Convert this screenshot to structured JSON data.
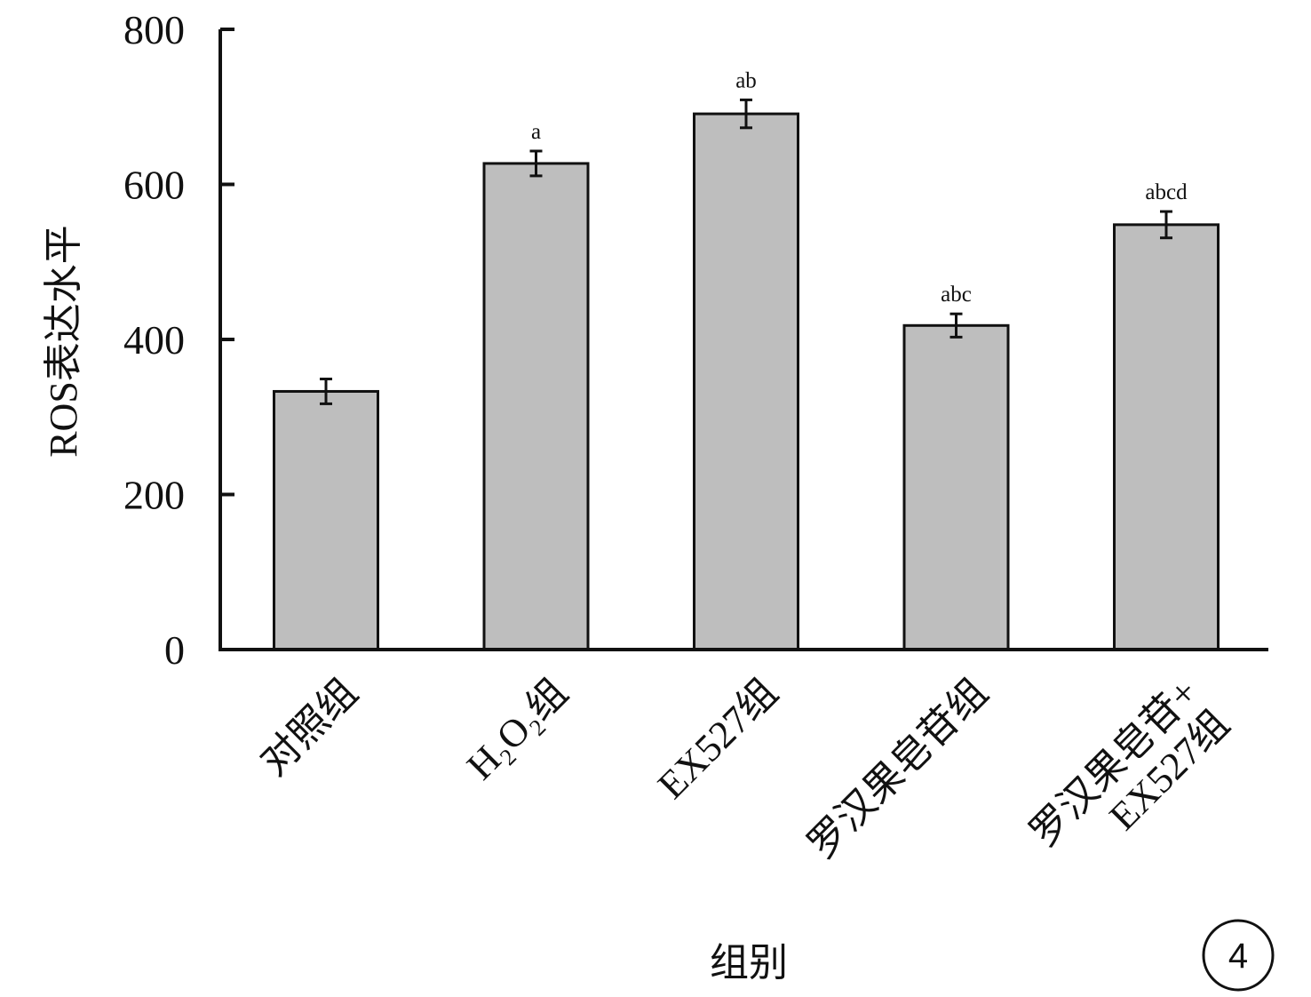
{
  "chart_data": {
    "type": "bar",
    "title": "",
    "xlabel": "组别",
    "ylabel": "ROS表达水平",
    "ylim": [
      0,
      800
    ],
    "yticks": [
      0,
      200,
      400,
      600,
      800
    ],
    "categories": [
      [
        "对照组"
      ],
      [
        "H₂O₂组"
      ],
      [
        "EX527组"
      ],
      [
        "罗汉果皂苷组"
      ],
      [
        "罗汉果皂苷+",
        "EX527组"
      ]
    ],
    "values": [
      333,
      627,
      691,
      418,
      548
    ],
    "errors": [
      16,
      16,
      18,
      15,
      17
    ],
    "significance": [
      "",
      "a",
      "ab",
      "abc",
      "abcd"
    ],
    "bar_color": "#bebebe",
    "edge_color": "#111111",
    "grid": false,
    "legend": "none"
  },
  "panel_label": "4"
}
